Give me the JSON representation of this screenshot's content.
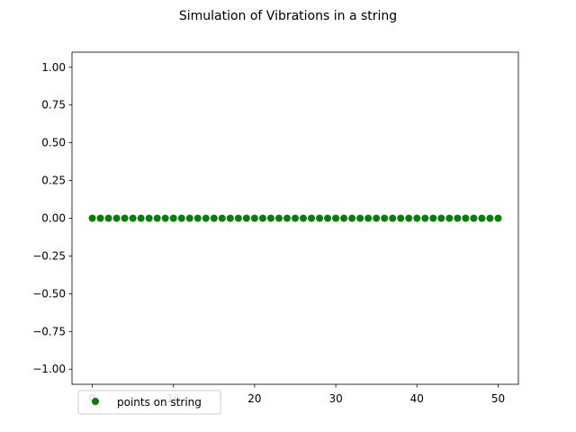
{
  "chart_data": {
    "type": "scatter",
    "title": "Simulation of Vibrations in a string",
    "xlabel": "",
    "ylabel": "",
    "xlim": [
      -2.5,
      52.5
    ],
    "ylim": [
      -1.1,
      1.1
    ],
    "xticks": [
      0,
      10,
      20,
      30,
      40,
      50
    ],
    "xtick_labels": [
      "0",
      "10",
      "20",
      "30",
      "40",
      "50"
    ],
    "yticks": [
      1.0,
      0.75,
      0.5,
      0.25,
      0.0,
      -0.25,
      -0.5,
      -0.75,
      -1.0
    ],
    "ytick_labels": [
      "1.00",
      "0.75",
      "0.50",
      "0.25",
      "0.00",
      "−0.25",
      "−0.50",
      "−0.75",
      "−1.00"
    ],
    "grid": false,
    "legend": "lower-left",
    "series": [
      {
        "name": "points on string",
        "color": "#008000",
        "marker": "circle",
        "x": [
          0,
          1,
          2,
          3,
          4,
          5,
          6,
          7,
          8,
          9,
          10,
          11,
          12,
          13,
          14,
          15,
          16,
          17,
          18,
          19,
          20,
          21,
          22,
          23,
          24,
          25,
          26,
          27,
          28,
          29,
          30,
          31,
          32,
          33,
          34,
          35,
          36,
          37,
          38,
          39,
          40,
          41,
          42,
          43,
          44,
          45,
          46,
          47,
          48,
          49,
          50
        ],
        "y": [
          0,
          0,
          0,
          0,
          0,
          0,
          0,
          0,
          0,
          0,
          0,
          0,
          0,
          0,
          0,
          0,
          0,
          0,
          0,
          0,
          0,
          0,
          0,
          0,
          0,
          0,
          0,
          0,
          0,
          0,
          0,
          0,
          0,
          0,
          0,
          0,
          0,
          0,
          0,
          0,
          0,
          0,
          0,
          0,
          0,
          0,
          0,
          0,
          0,
          0,
          0
        ]
      }
    ]
  }
}
